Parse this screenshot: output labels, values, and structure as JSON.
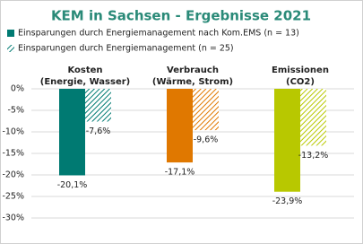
{
  "chart_data": {
    "type": "bar",
    "title": "KEM in Sachsen - Ergebnisse 2021",
    "categories": [
      [
        "Kosten",
        "(Energie, Wasser)"
      ],
      [
        "Verbrauch",
        "(Wärme, Strom)"
      ],
      [
        "Emissionen",
        "(CO2)"
      ]
    ],
    "series": [
      {
        "name": "Einsparungen durch Energiemanagement nach Kom.EMS (n = 13)",
        "pattern": "solid",
        "color": [
          "#007a72",
          "#e07800",
          "#b8c800"
        ],
        "values": [
          -20.1,
          -17.1,
          -23.9
        ],
        "value_labels": [
          "-20,1%",
          "-17,1%",
          "-23,9%"
        ]
      },
      {
        "name": "Einsparungen durch Energiemanagement (n = 25)",
        "pattern": "hatch",
        "color": [
          "#007a72",
          "#e07800",
          "#b8c800"
        ],
        "values": [
          -7.6,
          -9.6,
          -13.2
        ],
        "value_labels": [
          "-7,6%",
          "-9,6%",
          "-13,2%"
        ]
      }
    ],
    "ylim": [
      -30,
      0
    ],
    "yticks": [
      {
        "value": 0,
        "label": "0%"
      },
      {
        "value": -5,
        "label": "-5%"
      },
      {
        "value": -10,
        "label": "-10%"
      },
      {
        "value": -15,
        "label": "-15%"
      },
      {
        "value": -20,
        "label": "-20%"
      },
      {
        "value": -25,
        "label": "-25%"
      },
      {
        "value": -30,
        "label": "-30%"
      }
    ],
    "grid": true
  }
}
